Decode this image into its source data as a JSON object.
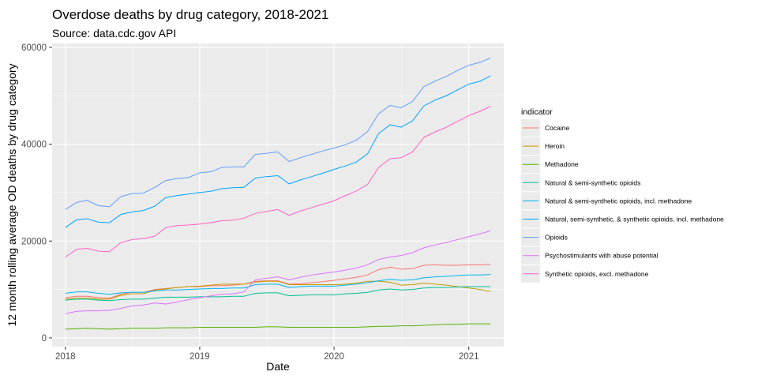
{
  "chart_data": {
    "type": "line",
    "title": "Overdose deaths by drug category, 2018-2021",
    "subtitle": "Source: data.cdc.gov API",
    "xlabel": "Date",
    "ylabel": "12 month rolling average OD deaths by drug category",
    "x_ticks": [
      "2018",
      "2019",
      "2020",
      "2021"
    ],
    "y_ticks": [
      "0",
      "20000",
      "40000",
      "60000"
    ],
    "xlim": [
      "2017-11-26",
      "2021-04-06"
    ],
    "ylim": [
      -1800,
      60800
    ],
    "grid": true,
    "legend_title": "indicator",
    "legend_position": "right",
    "x": [
      "2018-01-01",
      "2018-02-01",
      "2018-03-01",
      "2018-04-01",
      "2018-05-01",
      "2018-06-01",
      "2018-07-01",
      "2018-08-01",
      "2018-09-01",
      "2018-10-01",
      "2018-11-01",
      "2018-12-01",
      "2019-01-01",
      "2019-02-01",
      "2019-03-01",
      "2019-04-01",
      "2019-05-01",
      "2019-06-01",
      "2019-07-01",
      "2019-08-01",
      "2019-09-01",
      "2019-10-01",
      "2019-11-01",
      "2019-12-01",
      "2020-01-01",
      "2020-02-01",
      "2020-03-01",
      "2020-04-01",
      "2020-05-01",
      "2020-06-01",
      "2020-07-01",
      "2020-08-01",
      "2020-09-01",
      "2020-10-01",
      "2020-11-01",
      "2020-12-01",
      "2021-01-01",
      "2021-02-01",
      "2021-03-01"
    ],
    "series": [
      {
        "name": "Cocaine",
        "color": "#F8766D",
        "values": [
          8300,
          8600,
          8600,
          8300,
          8200,
          9000,
          9400,
          9400,
          10000,
          10200,
          10400,
          10600,
          10600,
          10800,
          10800,
          10900,
          11100,
          11700,
          11800,
          11800,
          11100,
          11200,
          11400,
          11600,
          11900,
          12200,
          12500,
          13000,
          14100,
          14600,
          14200,
          14300,
          15000,
          15100,
          15000,
          15000,
          15100,
          15100,
          15200
        ]
      },
      {
        "name": "Heroin",
        "color": "#C49A00",
        "values": [
          8000,
          8200,
          8200,
          8000,
          8000,
          8800,
          9100,
          9100,
          9900,
          10100,
          10400,
          10600,
          10700,
          10900,
          11100,
          11100,
          11100,
          11500,
          11700,
          11700,
          11000,
          11000,
          11000,
          11000,
          11000,
          11100,
          11300,
          11700,
          11700,
          11500,
          10900,
          11000,
          11300,
          11100,
          10900,
          10600,
          10300,
          10000,
          9600
        ]
      },
      {
        "name": "Methadone",
        "color": "#53B400",
        "values": [
          1800,
          1900,
          2000,
          1900,
          1800,
          1900,
          2000,
          2000,
          2000,
          2100,
          2100,
          2100,
          2200,
          2200,
          2200,
          2200,
          2200,
          2200,
          2300,
          2300,
          2200,
          2200,
          2200,
          2200,
          2200,
          2200,
          2200,
          2300,
          2400,
          2400,
          2500,
          2500,
          2600,
          2700,
          2800,
          2800,
          2900,
          2900,
          2900
        ]
      },
      {
        "name": "Natural & semi-synthetic opioids",
        "color": "#00C094",
        "values": [
          7800,
          8000,
          8000,
          7800,
          7700,
          7900,
          8000,
          8000,
          8200,
          8400,
          8400,
          8400,
          8500,
          8500,
          8500,
          8600,
          8600,
          9200,
          9300,
          9300,
          8700,
          8800,
          8900,
          8900,
          8900,
          9100,
          9200,
          9400,
          9900,
          10100,
          9900,
          10000,
          10300,
          10400,
          10400,
          10500,
          10600,
          10600,
          10600
        ]
      },
      {
        "name": "Natural & semi-synthetic opioids, incl. methadone",
        "color": "#00B6EB",
        "values": [
          9200,
          9500,
          9500,
          9200,
          9000,
          9300,
          9400,
          9400,
          9700,
          9900,
          9900,
          10000,
          10100,
          10200,
          10200,
          10300,
          10300,
          11000,
          11100,
          11100,
          10400,
          10600,
          10700,
          10700,
          10700,
          10900,
          11100,
          11400,
          11800,
          12100,
          11900,
          12000,
          12400,
          12600,
          12700,
          12900,
          13000,
          13000,
          13100
        ]
      },
      {
        "name": "Natural, semi-synthetic, & synthetic opioids, incl. methadone",
        "color": "#00A5FF",
        "values": [
          22800,
          24400,
          24600,
          23900,
          23800,
          25500,
          26000,
          26300,
          27200,
          29000,
          29400,
          29700,
          30000,
          30300,
          30800,
          31000,
          31100,
          33000,
          33300,
          33500,
          31800,
          32600,
          33300,
          34000,
          34800,
          35500,
          36300,
          38000,
          42200,
          44000,
          43500,
          44800,
          47900,
          49100,
          50000,
          51200,
          52400,
          53000,
          54100
        ]
      },
      {
        "name": "Opioids",
        "color": "#619CFF",
        "values": [
          26500,
          28000,
          28400,
          27300,
          27100,
          29200,
          29800,
          29900,
          31100,
          32500,
          32900,
          33100,
          34100,
          34300,
          35200,
          35300,
          35300,
          37900,
          38100,
          38400,
          36400,
          37200,
          37900,
          38600,
          39200,
          39900,
          40800,
          42600,
          46300,
          48000,
          47500,
          48800,
          51900,
          53000,
          54000,
          55200,
          56300,
          56900,
          57800
        ]
      },
      {
        "name": "Psychostimulants with abuse potential",
        "color": "#DB72FB",
        "values": [
          5000,
          5500,
          5600,
          5600,
          5700,
          6100,
          6600,
          6800,
          7200,
          7000,
          7400,
          7900,
          8300,
          8700,
          9000,
          9100,
          9500,
          12000,
          12300,
          12600,
          12000,
          12500,
          13000,
          13300,
          13600,
          14000,
          14400,
          15100,
          16200,
          16700,
          17000,
          17600,
          18600,
          19200,
          19700,
          20300,
          20900,
          21500,
          22100
        ]
      },
      {
        "name": "Synthetic opioids, excl. methadone",
        "color": "#FF61C3",
        "values": [
          16700,
          18300,
          18500,
          17900,
          17800,
          19700,
          20300,
          20500,
          21000,
          22800,
          23200,
          23300,
          23500,
          23800,
          24200,
          24300,
          24700,
          25700,
          26100,
          26500,
          25300,
          26200,
          26900,
          27600,
          28300,
          29400,
          30300,
          31700,
          35200,
          37000,
          37200,
          38400,
          41400,
          42500,
          43500,
          44700,
          45900,
          46800,
          47800
        ]
      }
    ]
  }
}
